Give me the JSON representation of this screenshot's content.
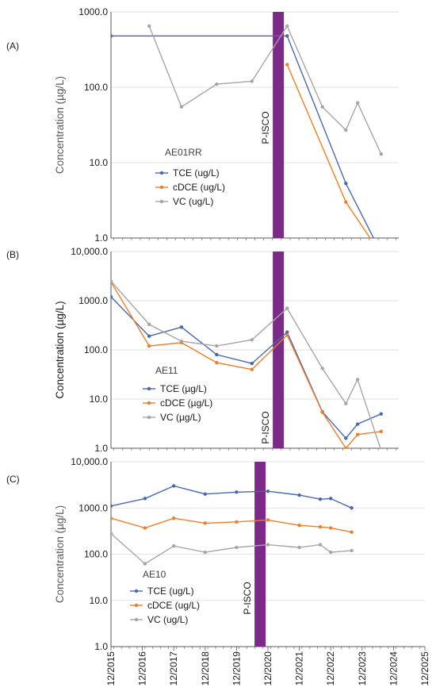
{
  "chart_data": [
    {
      "type": "line",
      "panel_label": "(A)",
      "ylabel": "Concentration (µg/L)",
      "y_scale": "log",
      "ylim": [
        1.0,
        1000.0
      ],
      "y_ticks": [
        {
          "value": 1,
          "label": "1.0"
        },
        {
          "value": 10,
          "label": "10.0"
        },
        {
          "value": 100,
          "label": "100.0"
        },
        {
          "value": 1000,
          "label": "1000.0"
        }
      ],
      "xlim": [
        "2015-12",
        "2024-02"
      ],
      "x_ticks": [],
      "well_label": "AE01RR",
      "marker": {
        "date": "2020-09",
        "label": "P-ISCO",
        "color": "#7b2a87"
      },
      "series": [
        {
          "name": "TCE (ug/L)",
          "color": "#4a68b0",
          "points": [
            [
              "2015-12",
              480
            ],
            [
              "2020-12",
              480
            ],
            [
              "2022-08",
              5.3
            ],
            [
              "2023-06",
              0.9
            ]
          ]
        },
        {
          "name": "cDCE (ug/L)",
          "color": "#f07e26",
          "points": [
            [
              "2020-12",
              200
            ],
            [
              "2022-08",
              3.0
            ],
            [
              "2023-05",
              0.9
            ]
          ]
        },
        {
          "name": "VC (ug/L)",
          "color": "#a6a6a6",
          "points": [
            [
              "2017-01",
              650
            ],
            [
              "2017-12",
              55
            ],
            [
              "2018-12",
              110
            ],
            [
              "2019-12",
              120
            ],
            [
              "2020-12",
              650
            ],
            [
              "2021-12",
              55
            ],
            [
              "2022-08",
              27
            ],
            [
              "2022-12",
              62
            ],
            [
              "2023-08",
              13
            ]
          ]
        }
      ]
    },
    {
      "type": "line",
      "panel_label": "(B)",
      "ylabel": "Concentration (µg/L)",
      "y_scale": "log",
      "ylim": [
        1.0,
        10000.0
      ],
      "y_ticks": [
        {
          "value": 1,
          "label": "1.0"
        },
        {
          "value": 10,
          "label": "10.0"
        },
        {
          "value": 100,
          "label": "100.0"
        },
        {
          "value": 1000,
          "label": "1000.0"
        },
        {
          "value": 10000,
          "label": "10,000.0"
        }
      ],
      "xlim": [
        "2015-12",
        "2024-02"
      ],
      "x_ticks": [],
      "well_label": "AE11",
      "marker": {
        "date": "2020-09",
        "label": "P-ISCO",
        "color": "#7b2a87"
      },
      "series": [
        {
          "name": "TCE (µg/L)",
          "color": "#4a68b0",
          "points": [
            [
              "2015-12",
              1200
            ],
            [
              "2017-01",
              190
            ],
            [
              "2017-12",
              290
            ],
            [
              "2018-12",
              80
            ],
            [
              "2019-12",
              53
            ],
            [
              "2020-12",
              230
            ],
            [
              "2021-12",
              5.5
            ],
            [
              "2022-08",
              1.6
            ],
            [
              "2022-12",
              3.1
            ],
            [
              "2023-08",
              5.0
            ]
          ]
        },
        {
          "name": "cDCE (µg/L)",
          "color": "#f07e26",
          "points": [
            [
              "2015-12",
              2400
            ],
            [
              "2017-01",
              120
            ],
            [
              "2017-12",
              140
            ],
            [
              "2018-12",
              55
            ],
            [
              "2019-12",
              40
            ],
            [
              "2020-12",
              200
            ],
            [
              "2021-12",
              5.4
            ],
            [
              "2022-08",
              1.0
            ],
            [
              "2022-12",
              1.9
            ],
            [
              "2023-08",
              2.2
            ]
          ]
        },
        {
          "name": "VC (µg/L)",
          "color": "#a6a6a6",
          "points": [
            [
              "2015-12",
              2500
            ],
            [
              "2017-01",
              330
            ],
            [
              "2017-12",
              150
            ],
            [
              "2018-12",
              120
            ],
            [
              "2019-12",
              160
            ],
            [
              "2020-12",
              700
            ],
            [
              "2021-12",
              42
            ],
            [
              "2022-08",
              8.1
            ],
            [
              "2022-12",
              25
            ],
            [
              "2023-08",
              0.9
            ]
          ]
        }
      ]
    },
    {
      "type": "line",
      "panel_label": "(C)",
      "ylabel": "Concentration (µg/L)",
      "y_scale": "log",
      "ylim": [
        1.0,
        10000.0
      ],
      "y_ticks": [
        {
          "value": 1,
          "label": "1.0"
        },
        {
          "value": 10,
          "label": "10.0"
        },
        {
          "value": 100,
          "label": "100.0"
        },
        {
          "value": 1000,
          "label": "1000.0"
        },
        {
          "value": 10000,
          "label": "10,000.0"
        }
      ],
      "xlim": [
        "2015-12",
        "2025-12"
      ],
      "x_ticks": [
        "12/2015",
        "12/2016",
        "12/2017",
        "12/2018",
        "12/2019",
        "12/2020",
        "12/2021",
        "12/2022",
        "12/2023",
        "12/2024",
        "12/2025"
      ],
      "well_label": "AE10",
      "marker": {
        "date": "2020-09",
        "label": "P-ISCO",
        "color": "#7b2a87"
      },
      "series": [
        {
          "name": "TCE (ug/L)",
          "color": "#4a68b0",
          "points": [
            [
              "2015-12",
              1100
            ],
            [
              "2017-01",
              1600
            ],
            [
              "2017-12",
              3000
            ],
            [
              "2018-12",
              2000
            ],
            [
              "2019-12",
              2200
            ],
            [
              "2020-12",
              2300
            ],
            [
              "2021-12",
              1900
            ],
            [
              "2022-08",
              1550
            ],
            [
              "2022-12",
              1600
            ],
            [
              "2023-08",
              1000
            ]
          ]
        },
        {
          "name": "cDCE (ug/L)",
          "color": "#f07e26",
          "points": [
            [
              "2015-12",
              600
            ],
            [
              "2017-01",
              370
            ],
            [
              "2017-12",
              600
            ],
            [
              "2018-12",
              470
            ],
            [
              "2019-12",
              500
            ],
            [
              "2020-12",
              550
            ],
            [
              "2021-12",
              420
            ],
            [
              "2022-08",
              390
            ],
            [
              "2022-12",
              370
            ],
            [
              "2023-08",
              300
            ]
          ]
        },
        {
          "name": "VC (ug/L)",
          "color": "#a6a6a6",
          "points": [
            [
              "2015-12",
              280
            ],
            [
              "2017-01",
              62
            ],
            [
              "2017-12",
              150
            ],
            [
              "2018-12",
              110
            ],
            [
              "2019-12",
              140
            ],
            [
              "2020-12",
              160
            ],
            [
              "2021-12",
              140
            ],
            [
              "2022-08",
              160
            ],
            [
              "2022-12",
              110
            ],
            [
              "2023-08",
              120
            ]
          ]
        }
      ]
    }
  ]
}
